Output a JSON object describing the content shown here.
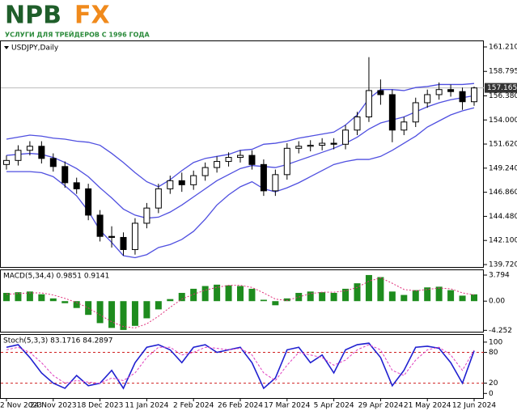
{
  "logo": {
    "brand_left": "NPB",
    "brand_right": "FX",
    "tagline": "УСЛУГИ ДЛЯ ТРЕЙДЕРОВ С 1996 ГОДА"
  },
  "chart_data": [
    {
      "type": "candlestick",
      "title": "USDJPY,Daily",
      "categories": [
        "2 Nov 2023",
        null,
        null,
        null,
        "24 Nov 2023",
        null,
        null,
        null,
        "18 Dec 2023",
        null,
        null,
        null,
        "11 Jan 2024",
        null,
        null,
        null,
        "2 Feb 2024",
        null,
        null,
        null,
        "26 Feb 2024",
        null,
        null,
        null,
        "17 Mar 2024",
        null,
        null,
        null,
        "5 Apr 2024",
        null,
        null,
        null,
        "29 Apr 2024",
        null,
        null,
        null,
        "21 May 2024",
        null,
        null,
        null,
        "12 Jun 2024"
      ],
      "open": [
        149.6,
        150.0,
        151.0,
        151.4,
        150.2,
        149.4,
        147.8,
        147.2,
        144.6,
        142.5,
        142.4,
        141.2,
        143.8,
        145.3,
        147.2,
        148.0,
        147.6,
        148.5,
        149.3,
        149.9,
        150.3,
        150.5,
        149.6,
        147.0,
        148.6,
        151.2,
        151.4,
        151.5,
        151.7,
        151.6,
        153.0,
        154.3,
        156.9,
        156.5,
        153.0,
        153.8,
        155.7,
        156.5,
        157.0,
        156.8,
        155.8
      ],
      "high": [
        150.5,
        151.5,
        151.9,
        151.9,
        150.7,
        149.9,
        148.3,
        147.7,
        145.1,
        143.5,
        142.9,
        144.3,
        145.8,
        147.7,
        148.5,
        148.8,
        149.0,
        149.8,
        150.4,
        150.8,
        151.0,
        151.0,
        150.1,
        149.1,
        151.7,
        151.9,
        152.0,
        152.2,
        152.2,
        153.5,
        154.8,
        160.2,
        158.0,
        157.0,
        154.3,
        156.2,
        157.0,
        157.7,
        157.5,
        157.2,
        157.3
      ],
      "low": [
        149.1,
        149.5,
        150.5,
        149.7,
        148.9,
        147.3,
        146.7,
        144.1,
        142.0,
        141.4,
        140.6,
        140.7,
        143.3,
        144.8,
        146.7,
        146.9,
        147.1,
        148.0,
        148.8,
        149.4,
        149.8,
        149.1,
        146.5,
        146.5,
        148.1,
        150.7,
        150.9,
        151.0,
        151.1,
        151.1,
        152.5,
        153.8,
        155.5,
        151.8,
        152.5,
        153.3,
        155.2,
        156.0,
        156.3,
        155.0,
        155.4
      ],
      "close": [
        150.0,
        151.0,
        151.4,
        150.2,
        149.4,
        147.8,
        147.2,
        144.6,
        142.5,
        142.4,
        141.2,
        143.8,
        145.3,
        147.2,
        148.0,
        147.6,
        148.5,
        149.3,
        149.9,
        150.3,
        150.5,
        149.6,
        147.0,
        148.6,
        151.2,
        151.4,
        151.5,
        151.7,
        151.6,
        153.0,
        154.3,
        156.9,
        156.5,
        153.0,
        153.8,
        155.7,
        156.5,
        157.0,
        156.8,
        155.8,
        157.16
      ],
      "bands": {
        "color": "#4f4fe0",
        "upper": [
          152.1,
          152.3,
          152.5,
          152.4,
          152.2,
          152.1,
          151.9,
          151.8,
          151.5,
          150.7,
          149.8,
          148.8,
          147.9,
          147.4,
          148.1,
          149.0,
          149.8,
          150.2,
          150.4,
          150.6,
          151.0,
          151.1,
          151.6,
          151.7,
          151.9,
          152.2,
          152.4,
          152.6,
          152.8,
          153.5,
          154.5,
          156.1,
          157.0,
          157.0,
          156.9,
          157.2,
          157.3,
          157.5,
          157.5,
          157.5,
          157.6
        ],
        "middle": [
          150.5,
          150.6,
          150.7,
          150.6,
          150.3,
          149.8,
          149.2,
          148.4,
          147.3,
          146.3,
          145.2,
          144.6,
          144.3,
          144.4,
          144.9,
          145.6,
          146.4,
          147.2,
          148.0,
          148.6,
          149.2,
          149.5,
          149.4,
          149.3,
          149.6,
          150.0,
          150.4,
          150.8,
          151.2,
          151.7,
          152.3,
          153.1,
          153.7,
          154.0,
          154.3,
          154.8,
          155.3,
          155.7,
          156.0,
          156.2,
          156.4
        ],
        "lower": [
          148.9,
          148.9,
          148.9,
          148.8,
          148.4,
          147.5,
          146.5,
          145.0,
          143.1,
          141.9,
          140.6,
          140.4,
          140.7,
          141.4,
          141.7,
          142.2,
          143.0,
          144.2,
          145.6,
          146.6,
          147.4,
          147.9,
          147.2,
          146.9,
          147.3,
          147.8,
          148.4,
          149.0,
          149.6,
          149.9,
          150.1,
          150.1,
          150.4,
          151.0,
          151.7,
          152.4,
          153.3,
          153.9,
          154.5,
          154.9,
          155.2
        ]
      },
      "last_price": {
        "value": 157.165,
        "label": "157.165"
      },
      "ylim": [
        139.48,
        161.77
      ],
      "yticks": [
        {
          "value": 161.21,
          "label": "161.210"
        },
        {
          "value": 158.795,
          "label": "158.795"
        },
        {
          "value": 156.38,
          "label": "156.380"
        },
        {
          "value": 154.0,
          "label": "154.000"
        },
        {
          "value": 151.62,
          "label": "151.620"
        },
        {
          "value": 149.24,
          "label": "149.240"
        },
        {
          "value": 146.86,
          "label": "146.860"
        },
        {
          "value": 144.48,
          "label": "144.480"
        },
        {
          "value": 142.1,
          "label": "142.100"
        },
        {
          "value": 139.72,
          "label": "139.720"
        }
      ]
    },
    {
      "type": "bar",
      "title": "MACD(5,34,4) 0.9851 0.9141",
      "color": "#1e8c1e",
      "values": [
        1.2,
        1.3,
        1.4,
        1.0,
        0.4,
        -0.3,
        -1.0,
        -2.0,
        -3.2,
        -3.9,
        -4.2,
        -3.6,
        -2.5,
        -1.2,
        0.3,
        1.2,
        1.8,
        2.2,
        2.4,
        2.3,
        2.2,
        1.8,
        0.2,
        -0.6,
        0.4,
        1.2,
        1.4,
        1.3,
        1.2,
        1.8,
        2.6,
        3.8,
        3.5,
        1.4,
        0.9,
        1.6,
        2.0,
        2.1,
        1.6,
        0.8,
        0.99
      ],
      "signal": {
        "color": "#e0307a",
        "values": [
          1.0,
          1.1,
          1.2,
          1.2,
          0.9,
          0.4,
          -0.2,
          -1.0,
          -2.0,
          -3.0,
          -3.7,
          -3.9,
          -3.3,
          -2.2,
          -0.9,
          0.3,
          1.0,
          1.6,
          2.0,
          2.3,
          2.3,
          2.0,
          1.2,
          0.3,
          0.1,
          0.6,
          1.1,
          1.3,
          1.3,
          1.5,
          2.0,
          2.9,
          3.4,
          2.6,
          1.7,
          1.5,
          1.7,
          1.9,
          1.8,
          1.2,
          0.91
        ]
      },
      "ylim": [
        -4.45,
        4.5
      ],
      "yticks": [
        3.794,
        {
          "value": 0,
          "label": "0.00"
        },
        -4.252
      ]
    },
    {
      "type": "line",
      "title": "Stoch(5,3,3) 83.1716 84.2897",
      "series": [
        {
          "color": "#2020d0",
          "values": [
            90,
            95,
            70,
            40,
            20,
            10,
            35,
            15,
            20,
            45,
            10,
            60,
            90,
            95,
            85,
            60,
            90,
            95,
            80,
            85,
            90,
            60,
            10,
            30,
            85,
            90,
            60,
            75,
            40,
            85,
            95,
            98,
            70,
            15,
            45,
            90,
            92,
            88,
            60,
            20,
            83.17
          ]
        },
        {
          "color": "#e040c0",
          "values": [
            85,
            90,
            80,
            60,
            35,
            20,
            25,
            22,
            20,
            30,
            25,
            40,
            70,
            90,
            90,
            75,
            80,
            90,
            88,
            85,
            88,
            75,
            40,
            25,
            55,
            80,
            75,
            70,
            55,
            65,
            85,
            95,
            85,
            45,
            35,
            65,
            85,
            90,
            75,
            45,
            84.29
          ]
        }
      ],
      "levels": [
        80,
        20
      ],
      "level_color": "#d02020",
      "ylim": [
        -9,
        114
      ],
      "yticks": [
        100,
        80,
        20,
        0
      ]
    }
  ]
}
